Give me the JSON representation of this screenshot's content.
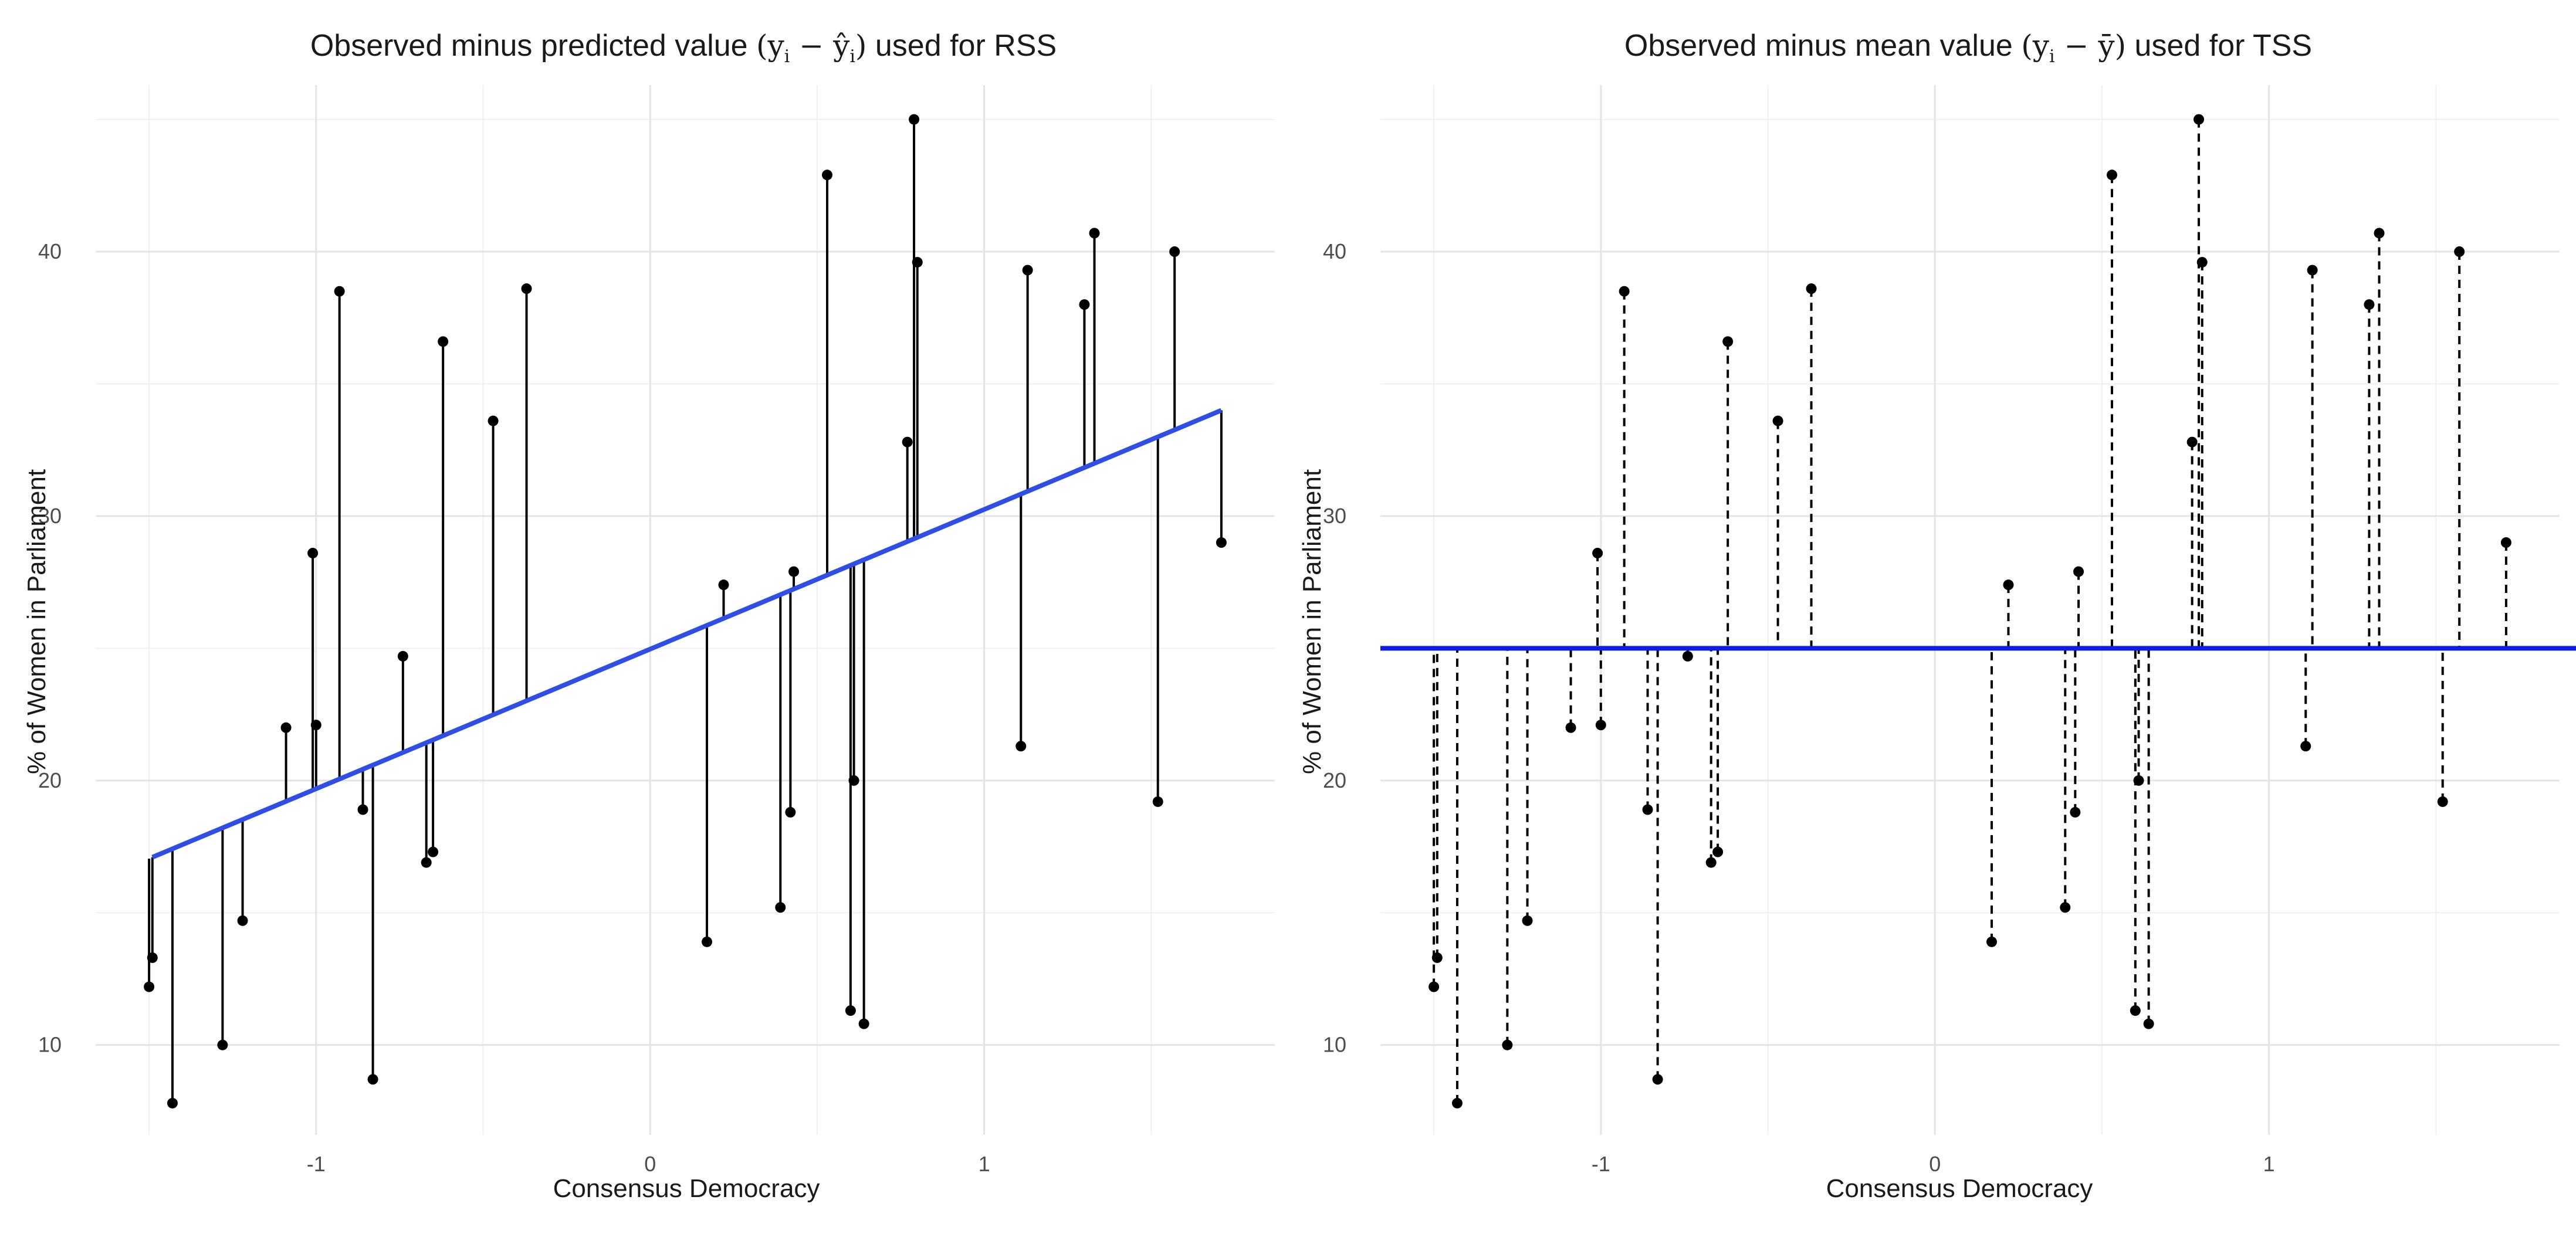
{
  "chart_data": [
    {
      "type": "scatter",
      "title": "Observed minus predicted value (yi − ŷi) used for RSS",
      "title_parts": {
        "before": "Observed minus predicted value ",
        "y": "y",
        "sub": "i",
        "minus": " − ",
        "yhat": "ŷ",
        "after": " used for RSS"
      },
      "xlabel": "Consensus Democracy",
      "ylabel": "% of Women in Parliament",
      "xlim": [
        -1.66,
        1.87
      ],
      "ylim": [
        6.6,
        46.3
      ],
      "xticks": [
        -1,
        0,
        1
      ],
      "yticks": [
        10,
        20,
        30,
        40
      ],
      "grid": true,
      "fit_line": {
        "color": "#2e4ee6",
        "from": [
          -1.49,
          17.1
        ],
        "to": [
          1.71,
          34.0
        ]
      },
      "segments_to": "fitted",
      "segment_style": "solid",
      "points": [
        [
          -1.5,
          12.2
        ],
        [
          -1.49,
          13.3
        ],
        [
          -1.43,
          7.8
        ],
        [
          -1.28,
          10.0
        ],
        [
          -1.22,
          14.7
        ],
        [
          -1.09,
          22.0
        ],
        [
          -1.01,
          28.6
        ],
        [
          -1.0,
          22.1
        ],
        [
          -0.93,
          38.5
        ],
        [
          -0.86,
          18.9
        ],
        [
          -0.83,
          8.7
        ],
        [
          -0.74,
          24.7
        ],
        [
          -0.67,
          16.9
        ],
        [
          -0.65,
          17.3
        ],
        [
          -0.62,
          36.6
        ],
        [
          -0.47,
          33.6
        ],
        [
          -0.37,
          38.6
        ],
        [
          0.17,
          13.9
        ],
        [
          0.22,
          27.4
        ],
        [
          0.39,
          15.2
        ],
        [
          0.42,
          18.8
        ],
        [
          0.43,
          27.9
        ],
        [
          0.53,
          42.9
        ],
        [
          0.6,
          11.3
        ],
        [
          0.61,
          20.0
        ],
        [
          0.64,
          10.8
        ],
        [
          0.77,
          32.8
        ],
        [
          0.79,
          45.0
        ],
        [
          0.8,
          39.6
        ],
        [
          1.11,
          21.3
        ],
        [
          1.13,
          39.3
        ],
        [
          1.3,
          38.0
        ],
        [
          1.33,
          40.7
        ],
        [
          1.52,
          19.2
        ],
        [
          1.57,
          40.0
        ],
        [
          1.71,
          29.0
        ]
      ]
    },
    {
      "type": "scatter",
      "title": "Observed minus mean value (yi − ȳ) used for TSS",
      "title_parts": {
        "before": "Observed minus mean value ",
        "y": "y",
        "sub": "i",
        "minus": " − ",
        "ybar": "ȳ",
        "after": " used for TSS"
      },
      "xlabel": "Consensus Democracy",
      "ylabel": "% of Women in Parliament",
      "xlim": [
        -1.66,
        1.87
      ],
      "ylim": [
        6.6,
        46.3
      ],
      "xticks": [
        -1,
        0,
        1
      ],
      "yticks": [
        10,
        20,
        30,
        40
      ],
      "grid": true,
      "mean_line": {
        "color": "#0a1ee6",
        "y": 25.0
      },
      "segments_to": "mean",
      "segment_style": "dashed",
      "points": [
        [
          -1.5,
          12.2
        ],
        [
          -1.49,
          13.3
        ],
        [
          -1.43,
          7.8
        ],
        [
          -1.28,
          10.0
        ],
        [
          -1.22,
          14.7
        ],
        [
          -1.09,
          22.0
        ],
        [
          -1.01,
          28.6
        ],
        [
          -1.0,
          22.1
        ],
        [
          -0.93,
          38.5
        ],
        [
          -0.86,
          18.9
        ],
        [
          -0.83,
          8.7
        ],
        [
          -0.74,
          24.7
        ],
        [
          -0.67,
          16.9
        ],
        [
          -0.65,
          17.3
        ],
        [
          -0.62,
          36.6
        ],
        [
          -0.47,
          33.6
        ],
        [
          -0.37,
          38.6
        ],
        [
          0.17,
          13.9
        ],
        [
          0.22,
          27.4
        ],
        [
          0.39,
          15.2
        ],
        [
          0.42,
          18.8
        ],
        [
          0.43,
          27.9
        ],
        [
          0.53,
          42.9
        ],
        [
          0.6,
          11.3
        ],
        [
          0.61,
          20.0
        ],
        [
          0.64,
          10.8
        ],
        [
          0.77,
          32.8
        ],
        [
          0.79,
          45.0
        ],
        [
          0.8,
          39.6
        ],
        [
          1.11,
          21.3
        ],
        [
          1.13,
          39.3
        ],
        [
          1.3,
          38.0
        ],
        [
          1.33,
          40.7
        ],
        [
          1.52,
          19.2
        ],
        [
          1.57,
          40.0
        ],
        [
          1.71,
          29.0
        ]
      ]
    }
  ]
}
